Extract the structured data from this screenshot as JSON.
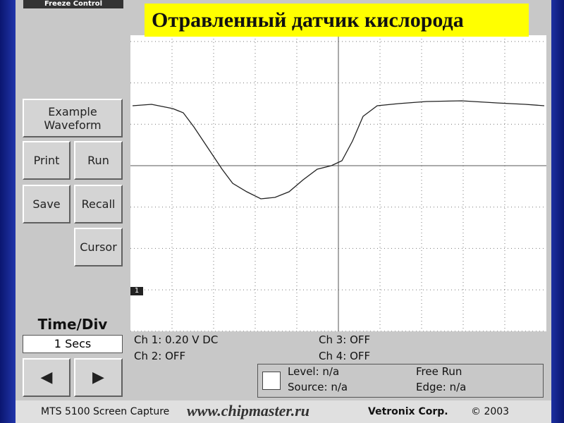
{
  "header": {
    "freeze_control": "Freeze Control",
    "title": "Отравленный датчик кислорода"
  },
  "buttons": {
    "example": [
      "Example",
      "Waveform"
    ],
    "print": "Print",
    "run": "Run",
    "save": "Save",
    "recall": "Recall",
    "cursor": "Cursor"
  },
  "time_div": {
    "label": "Time/Div",
    "value": "1 Secs"
  },
  "scope": {
    "channel_marker": "1"
  },
  "channels": {
    "ch1": "Ch 1: 0.20 V DC",
    "ch2": "Ch 2: OFF",
    "ch3": "Ch 3: OFF",
    "ch4": "Ch 4: OFF"
  },
  "trigger": {
    "level": "Level: n/a",
    "source": "Source: n/a",
    "mode": "Free Run",
    "edge": "Edge: n/a"
  },
  "footer": {
    "capture": "MTS 5100 Screen Capture",
    "website": "www.chipmaster.ru",
    "company": "Vetronix Corp.",
    "year": "© 2003"
  }
}
